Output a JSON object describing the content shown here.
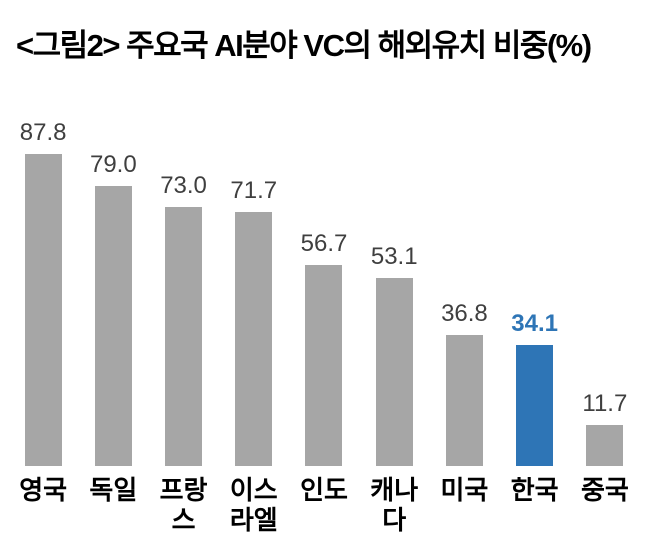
{
  "title": "<그림2> 주요국 AI분야 VC의 해외유치 비중(%)",
  "chart_data": {
    "type": "bar",
    "title": "<그림2> 주요국 AI분야 VC의 해외유치 비중(%)",
    "categories": [
      "영국",
      "독일",
      "프랑스",
      "이스라엘",
      "인도",
      "캐나다",
      "미국",
      "한국",
      "중국"
    ],
    "category_display": [
      "영국",
      "독일",
      "프랑스",
      "이스\n라엘",
      "인도",
      "캐나다",
      "미국",
      "한국",
      "중국"
    ],
    "values": [
      87.8,
      79.0,
      73.0,
      71.7,
      56.7,
      53.1,
      36.8,
      34.1,
      11.7
    ],
    "value_labels": [
      "87.8",
      "79.0",
      "73.0",
      "71.7",
      "56.7",
      "53.1",
      "36.8",
      "34.1",
      "11.7"
    ],
    "unit": "%",
    "highlight_category": "한국",
    "highlight_index": 7,
    "ylim": [
      0,
      100
    ],
    "grid": false,
    "legend": false,
    "xlabel": "",
    "ylabel": "",
    "colors": {
      "bar": "#a6a6a6",
      "highlight_bar": "#2e75b6",
      "value_label": "#3f3f3f",
      "highlight_value_label": "#2e75b6",
      "title": "#000000"
    }
  }
}
